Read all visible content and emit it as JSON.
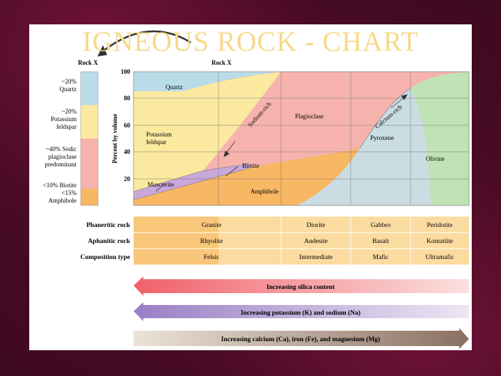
{
  "slide": {
    "title": "IGNEOUS ROCK - CHART"
  },
  "rock_x": {
    "left_label": "Rock X",
    "right_label": "Rock X"
  },
  "left_composition": {
    "quartz_pct": "~20%",
    "quartz_name": "Quartz",
    "kspar_pct": "~20%",
    "kspar_name_1": "Potassium",
    "kspar_name_2": "feldspar",
    "plag_line_1": "~40% Sodic",
    "plag_line_2": "plagioclase",
    "plag_line_3": "predominant",
    "mafic_line_1": "<10% Biotite",
    "mafic_line_2": "<15%",
    "mafic_line_3": "Amphibole"
  },
  "axis": {
    "ylabel": "Percent by volume",
    "ticks": [
      "100",
      "80",
      "60",
      "40",
      "20"
    ]
  },
  "minerals": {
    "quartz": "Quartz",
    "kspar_1": "Potassium",
    "kspar_2": "feldspar",
    "sodium_rich": "Sodium-rich",
    "plagioclase": "Plagioclase",
    "calcium_rich": "Calcium-rich",
    "pyroxene": "Pyroxene",
    "olivine": "Olivine",
    "biotite": "Biotite",
    "muscovite": "Muscovite",
    "amphibole": "Amphibole"
  },
  "table": {
    "row_labels": [
      "Phaneritic rock",
      "Aphanitic rock",
      "Composition type"
    ],
    "phaneritic": [
      "Granite",
      "Diorite",
      "Gabbro",
      "Peridotite"
    ],
    "aphanitic": [
      "Rhyolite",
      "Andesite",
      "Basalt",
      "Komatiite"
    ],
    "composition": [
      "Felsic",
      "Intermediate",
      "Mafic",
      "Ultramafic"
    ]
  },
  "arrows": {
    "silica": "Increasing silica content",
    "potassium_sodium": "Increasing potassium (K) and sodium (Na)",
    "ca_fe_mg": "Increasing calcium (Ca), iron (Fe), and magnesium (Mg)"
  },
  "colors": {
    "quartz": "#b9dde8",
    "kspar": "#fbe9a0",
    "plagioclase": "#f6b3ad",
    "amphibole": "#f7b763",
    "pyroxene": "#c9dde2",
    "olivine": "#bfe3b4",
    "biotite": "#c9a7d9",
    "title": "#f6d98a",
    "background": "#4a0a24"
  }
}
